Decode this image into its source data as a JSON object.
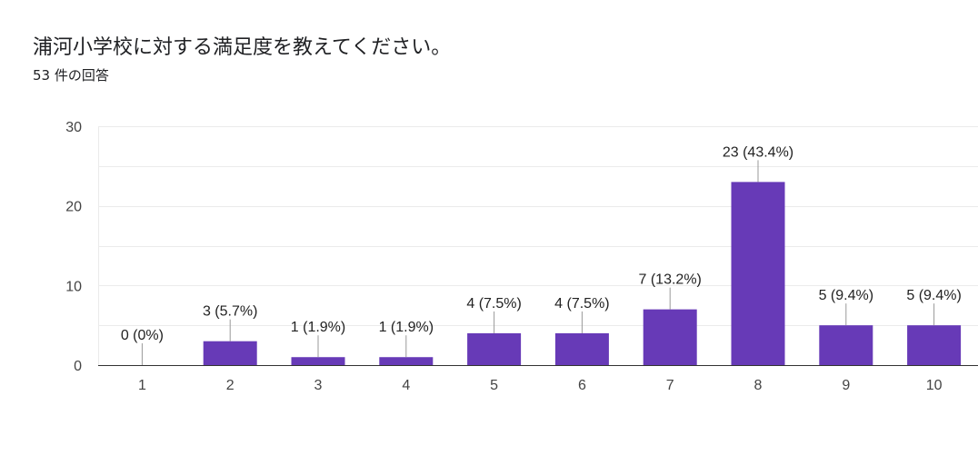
{
  "title": "浦河小学校に対する満足度を教えてください。",
  "response_count": "53 件の回答",
  "colors": {
    "bar": "#673ab7",
    "grid": "#ebebeb",
    "axis": "#333333",
    "leader": "#999999"
  },
  "chart_data": {
    "type": "bar",
    "categories": [
      "1",
      "2",
      "3",
      "4",
      "5",
      "6",
      "7",
      "8",
      "9",
      "10"
    ],
    "values": [
      0,
      3,
      1,
      1,
      4,
      4,
      7,
      23,
      5,
      5
    ],
    "data_labels": [
      "0 (0%)",
      "3 (5.7%)",
      "1 (1.9%)",
      "1 (1.9%)",
      "4 (7.5%)",
      "4 (7.5%)",
      "7 (13.2%)",
      "23 (43.4%)",
      "5 (9.4%)",
      "5 (9.4%)"
    ],
    "ylim": [
      0,
      30
    ],
    "yticks": [
      0,
      10,
      20,
      30
    ],
    "grid": true,
    "xlabel": "",
    "ylabel": ""
  }
}
